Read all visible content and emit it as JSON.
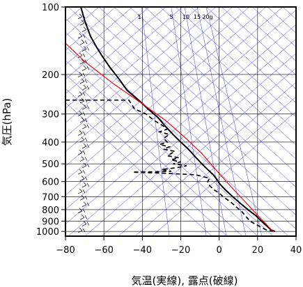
{
  "chart_data": {
    "type": "line",
    "title": "",
    "xlabel": "気温(実線), 露点(破線)",
    "ylabel": "気圧(hPa)",
    "xlim": [
      -80,
      40
    ],
    "ylim": [
      1050,
      100
    ],
    "y_scale": "log",
    "grid": true,
    "x_ticks": [
      "−80",
      "−60",
      "−40",
      "−20",
      "0",
      "20",
      "40"
    ],
    "x_tick_values": [
      -80,
      -60,
      -40,
      -20,
      0,
      20,
      40
    ],
    "y_ticks": [
      "100",
      "200",
      "300",
      "400",
      "500",
      "600",
      "700",
      "800",
      "900",
      "1000"
    ],
    "y_tick_values": [
      100,
      200,
      300,
      400,
      500,
      600,
      700,
      800,
      900,
      1000
    ],
    "mixing_ratio_labels": [
      "1",
      "5",
      "10",
      "15",
      "20g"
    ],
    "colors": {
      "temperature": "#000000",
      "dewpoint": "#000000",
      "reference": "#ff0000",
      "background_lines": "#3333ff",
      "grid": "#000000"
    },
    "series": [
      {
        "style": "solid",
        "points": [
          [
            -72,
            100
          ],
          [
            -70,
            115
          ],
          [
            -67,
            135
          ],
          [
            -64,
            150
          ],
          [
            -61,
            165
          ],
          [
            -57,
            185
          ],
          [
            -52,
            210
          ],
          [
            -48,
            235
          ],
          [
            -42,
            260
          ],
          [
            -37,
            285
          ],
          [
            -32,
            310
          ],
          [
            -28,
            340
          ],
          [
            -24,
            370
          ],
          [
            -20,
            400
          ],
          [
            -16,
            430
          ],
          [
            -12,
            470
          ],
          [
            -9,
            500
          ],
          [
            -6,
            530
          ],
          [
            -3,
            560
          ],
          [
            -1,
            590
          ],
          [
            0,
            610
          ],
          [
            3,
            650
          ],
          [
            7,
            700
          ],
          [
            11,
            750
          ],
          [
            15,
            800
          ],
          [
            19,
            850
          ],
          [
            22,
            900
          ],
          [
            25,
            950
          ],
          [
            27,
            985
          ],
          [
            29,
            1000
          ]
        ]
      },
      {
        "style": "dashed",
        "points": [
          [
            -80,
            260
          ],
          [
            -47,
            260
          ],
          [
            -44,
            285
          ],
          [
            -38,
            300
          ],
          [
            -34,
            320
          ],
          [
            -30,
            335
          ],
          [
            -27,
            350
          ],
          [
            -31,
            360
          ],
          [
            -26,
            370
          ],
          [
            -29,
            385
          ],
          [
            -27,
            400
          ],
          [
            -31,
            410
          ],
          [
            -26,
            420
          ],
          [
            -29,
            430
          ],
          [
            -23,
            440
          ],
          [
            -27,
            460
          ],
          [
            -21,
            470
          ],
          [
            -25,
            480
          ],
          [
            -20,
            490
          ],
          [
            -24,
            500
          ],
          [
            -17,
            510
          ],
          [
            -22,
            520
          ],
          [
            -30,
            530
          ],
          [
            -25,
            540
          ],
          [
            -45,
            545
          ],
          [
            -30,
            550
          ],
          [
            -12,
            560
          ],
          [
            -5,
            580
          ],
          [
            -6,
            600
          ],
          [
            -5,
            625
          ],
          [
            -3,
            650
          ],
          [
            0,
            675
          ],
          [
            2,
            700
          ],
          [
            6,
            740
          ],
          [
            9,
            780
          ],
          [
            12,
            820
          ],
          [
            14,
            860
          ],
          [
            16,
            900
          ],
          [
            21,
            950
          ],
          [
            25,
            990
          ],
          [
            28,
            1000
          ]
        ]
      },
      {
        "style": "solid",
        "points": [
          [
            -80,
            145
          ],
          [
            -70,
            175
          ],
          [
            -55,
            220
          ],
          [
            -40,
            270
          ],
          [
            -28,
            320
          ],
          [
            -18,
            380
          ],
          [
            -9,
            450
          ],
          [
            -1,
            540
          ],
          [
            6,
            630
          ],
          [
            13,
            730
          ],
          [
            19,
            830
          ],
          [
            24,
            920
          ],
          [
            28,
            1000
          ]
        ]
      }
    ]
  }
}
